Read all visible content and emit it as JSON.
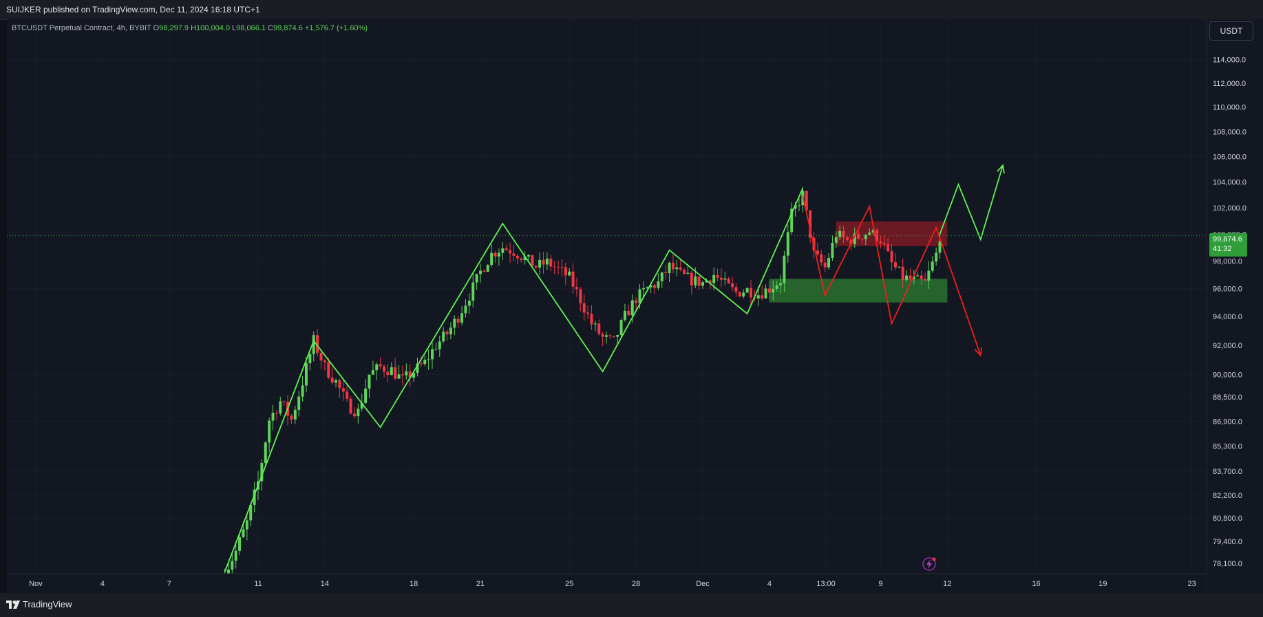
{
  "header": {
    "published": "SUIJKER published on TradingView.com, Dec 11, 2024 16:18 UTC+1"
  },
  "legend": {
    "symbol": "BTCUSDT Perpetual Contract, 4h, BYBIT",
    "o_label": "O",
    "o_value": "98,297.9",
    "h_label": "H",
    "h_value": "100,004.0",
    "l_label": "L",
    "l_value": "98,066.1",
    "c_label": "C",
    "c_value": "99,874.6",
    "change": "+1,576.7 (+1.60%)"
  },
  "currency_button": "USDT",
  "last_price": {
    "price": "99,874.6",
    "countdown": "41:32"
  },
  "footer": {
    "brand": "TradingView"
  },
  "colors": {
    "up": "#5fd35b",
    "down": "#f23645",
    "pattern": "#5ef550",
    "bearish_path": "#f0201a",
    "supply_zone": "#8a1c24",
    "demand_zone": "#2e7d32"
  },
  "icons": {
    "flash": "lightning-icon",
    "logo": "tradingview-logo-icon"
  },
  "chart_data": {
    "type": "candlestick",
    "symbol": "BTCUSDT Perpetual Contract",
    "interval": "4h",
    "scale": "log",
    "ylim": [
      77500,
      117500
    ],
    "y_ticks": [
      "78,100.0",
      "79,400.0",
      "80,800.0",
      "82,200.0",
      "83,700.0",
      "85,300.0",
      "86,900.0",
      "88,500.0",
      "90,000.0",
      "92,000.0",
      "94,000.0",
      "96,000.0",
      "98,000.0",
      "100,000.0",
      "102,000.0",
      "104,000.0",
      "106,000.0",
      "108,000.0",
      "110,000.0",
      "112,000.0",
      "114,000.0"
    ],
    "y_tick_values": [
      78100,
      79400,
      80800,
      82200,
      83700,
      85300,
      86900,
      88500,
      90000,
      92000,
      94000,
      96000,
      98000,
      100000,
      102000,
      104000,
      106000,
      108000,
      110000,
      112000,
      114000
    ],
    "x_ticks": [
      "Nov",
      "4",
      "7",
      "11",
      "14",
      "18",
      "21",
      "25",
      "28",
      "Dec",
      "4",
      "13:00",
      "9",
      "12",
      "16",
      "19",
      "23"
    ],
    "x_tick_dates": [
      "2024-11-01",
      "2024-11-04",
      "2024-11-07",
      "2024-11-11",
      "2024-11-14",
      "2024-11-18",
      "2024-11-21",
      "2024-11-25",
      "2024-11-28",
      "2024-12-01",
      "2024-12-04",
      "2024-12-06 13:00",
      "2024-12-09",
      "2024-12-12",
      "2024-12-16",
      "2024-12-19",
      "2024-12-23"
    ],
    "close_path": [
      [
        "2024-11-09 12:00",
        77600
      ],
      [
        "2024-11-10 00:00",
        78800
      ],
      [
        "2024-11-10 12:00",
        80500
      ],
      [
        "2024-11-11 00:00",
        83000
      ],
      [
        "2024-11-11 12:00",
        87000
      ],
      [
        "2024-11-12 00:00",
        88200
      ],
      [
        "2024-11-12 12:00",
        87000
      ],
      [
        "2024-11-13 00:00",
        89500
      ],
      [
        "2024-11-13 12:00",
        92300
      ],
      [
        "2024-11-14 00:00",
        90500
      ],
      [
        "2024-11-14 12:00",
        89500
      ],
      [
        "2024-11-15 00:00",
        88000
      ],
      [
        "2024-11-15 12:00",
        87500
      ],
      [
        "2024-11-16 00:00",
        90000
      ],
      [
        "2024-11-16 12:00",
        90500
      ],
      [
        "2024-11-17 00:00",
        90300
      ],
      [
        "2024-11-17 12:00",
        89600
      ],
      [
        "2024-11-18 00:00",
        90200
      ],
      [
        "2024-11-18 12:00",
        90800
      ],
      [
        "2024-11-19 00:00",
        92000
      ],
      [
        "2024-11-19 12:00",
        92800
      ],
      [
        "2024-11-20 00:00",
        94000
      ],
      [
        "2024-11-20 12:00",
        95500
      ],
      [
        "2024-11-21 00:00",
        97200
      ],
      [
        "2024-11-21 12:00",
        98500
      ],
      [
        "2024-11-22 00:00",
        99000
      ],
      [
        "2024-11-22 12:00",
        98700
      ],
      [
        "2024-11-23 00:00",
        98200
      ],
      [
        "2024-11-23 12:00",
        97600
      ],
      [
        "2024-11-24 00:00",
        97900
      ],
      [
        "2024-11-24 12:00",
        97400
      ],
      [
        "2024-11-25 00:00",
        96800
      ],
      [
        "2024-11-25 12:00",
        95200
      ],
      [
        "2024-11-26 00:00",
        93500
      ],
      [
        "2024-11-26 12:00",
        92500
      ],
      [
        "2024-11-27 00:00",
        92200
      ],
      [
        "2024-11-27 12:00",
        94000
      ],
      [
        "2024-11-28 00:00",
        95300
      ],
      [
        "2024-11-28 12:00",
        96000
      ],
      [
        "2024-11-29 00:00",
        96400
      ],
      [
        "2024-11-29 12:00",
        97600
      ],
      [
        "2024-11-30 00:00",
        97000
      ],
      [
        "2024-11-30 12:00",
        96600
      ],
      [
        "2024-12-01 00:00",
        96400
      ],
      [
        "2024-12-01 12:00",
        97000
      ],
      [
        "2024-12-02 00:00",
        96300
      ],
      [
        "2024-12-02 12:00",
        95700
      ],
      [
        "2024-12-03 00:00",
        95900
      ],
      [
        "2024-12-03 12:00",
        95600
      ],
      [
        "2024-12-04 00:00",
        96000
      ],
      [
        "2024-12-04 12:00",
        96600
      ],
      [
        "2024-12-05 00:00",
        101500
      ],
      [
        "2024-12-05 12:00",
        103000
      ],
      [
        "2024-12-06 00:00",
        98500
      ],
      [
        "2024-12-06 12:00",
        97500
      ],
      [
        "2024-12-07 00:00",
        100000
      ],
      [
        "2024-12-07 12:00",
        99500
      ],
      [
        "2024-12-08 00:00",
        99800
      ],
      [
        "2024-12-08 12:00",
        100200
      ],
      [
        "2024-12-09 00:00",
        99600
      ],
      [
        "2024-12-09 12:00",
        97800
      ],
      [
        "2024-12-10 00:00",
        96800
      ],
      [
        "2024-12-10 12:00",
        96600
      ],
      [
        "2024-12-11 00:00",
        96400
      ],
      [
        "2024-12-11 12:00",
        98500
      ],
      [
        "2024-12-11 16:00",
        99874.6
      ]
    ],
    "zones": [
      {
        "name": "supply",
        "from": "2024-12-07 00:00",
        "to": "2024-12-12 00:00",
        "top": 100950,
        "bottom": 99100
      },
      {
        "name": "demand",
        "from": "2024-12-04 00:00",
        "to": "2024-12-12 00:00",
        "top": 96700,
        "bottom": 95000
      }
    ],
    "drawings": [
      {
        "name": "bullish-zigzag",
        "points": [
          [
            "2024-11-09 12:00",
            77600
          ],
          [
            "2024-11-13 12:00",
            92300
          ],
          [
            "2024-11-16 12:00",
            86500
          ],
          [
            "2024-11-22 00:00",
            100800
          ],
          [
            "2024-11-26 12:00",
            90200
          ],
          [
            "2024-11-29 12:00",
            98800
          ],
          [
            "2024-12-03 00:00",
            94200
          ],
          [
            "2024-12-05 12:00",
            103500
          ],
          [
            "2024-12-05 12:00",
            103500
          ]
        ]
      },
      {
        "name": "bullish-projection",
        "points": [
          [
            "2024-12-11 16:00",
            100000
          ],
          [
            "2024-12-12 12:00",
            103800
          ],
          [
            "2024-12-13 12:00",
            99600
          ],
          [
            "2024-12-14 12:00",
            105300
          ]
        ]
      },
      {
        "name": "bearish-projection",
        "points": [
          [
            "2024-12-05 12:00",
            102900
          ],
          [
            "2024-12-06 12:00",
            95500
          ],
          [
            "2024-12-08 12:00",
            102100
          ],
          [
            "2024-12-09 12:00",
            93500
          ],
          [
            "2024-12-11 12:00",
            100500
          ],
          [
            "2024-12-13 12:00",
            91300
          ]
        ]
      }
    ]
  }
}
